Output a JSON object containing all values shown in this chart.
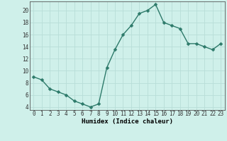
{
  "x": [
    0,
    1,
    2,
    3,
    4,
    5,
    6,
    7,
    8,
    9,
    10,
    11,
    12,
    13,
    14,
    15,
    16,
    17,
    18,
    19,
    20,
    21,
    22,
    23
  ],
  "y": [
    9,
    8.5,
    7,
    6.5,
    6,
    5,
    4.5,
    4,
    4.5,
    10.5,
    13.5,
    16,
    17.5,
    19.5,
    20,
    21,
    18,
    17.5,
    17,
    14.5,
    14.5,
    14,
    13.5,
    14.5
  ],
  "line_color": "#2d7a6a",
  "marker": "D",
  "markersize": 2.5,
  "linewidth": 1.0,
  "xlabel": "Humidex (Indice chaleur)",
  "xlim": [
    -0.5,
    23.5
  ],
  "ylim": [
    3.5,
    21.5
  ],
  "yticks": [
    4,
    6,
    8,
    10,
    12,
    14,
    16,
    18,
    20
  ],
  "xticks": [
    0,
    1,
    2,
    3,
    4,
    5,
    6,
    7,
    8,
    9,
    10,
    11,
    12,
    13,
    14,
    15,
    16,
    17,
    18,
    19,
    20,
    21,
    22,
    23
  ],
  "xtick_labels": [
    "0",
    "1",
    "2",
    "3",
    "4",
    "5",
    "6",
    "7",
    "8",
    "9",
    "10",
    "11",
    "12",
    "13",
    "14",
    "15",
    "16",
    "17",
    "18",
    "19",
    "20",
    "21",
    "22",
    "23"
  ],
  "background_color": "#cff0ea",
  "grid_color": "#b8ddd8",
  "xlabel_fontsize": 6.5,
  "tick_fontsize": 5.5
}
